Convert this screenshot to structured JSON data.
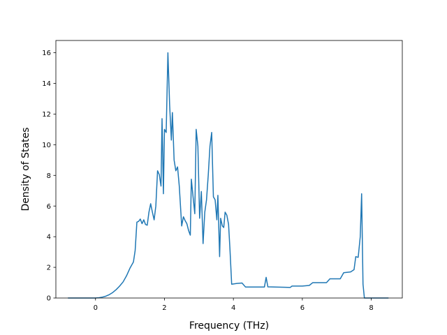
{
  "chart_data": {
    "type": "line",
    "xlabel": "Frequency (THz)",
    "ylabel": "Density of States",
    "xlim": [
      -1.15,
      8.9
    ],
    "ylim": [
      0,
      16.8
    ],
    "xticks": [
      0,
      2,
      4,
      6,
      8
    ],
    "yticks": [
      0,
      2,
      4,
      6,
      8,
      10,
      12,
      14,
      16
    ],
    "grid": false,
    "legend": "none",
    "series": [
      {
        "color": "#1f77b4",
        "points": [
          [
            -0.8,
            0.0
          ],
          [
            -0.4,
            0.0
          ],
          [
            0.0,
            0.0
          ],
          [
            0.1,
            0.02
          ],
          [
            0.2,
            0.06
          ],
          [
            0.3,
            0.12
          ],
          [
            0.4,
            0.22
          ],
          [
            0.5,
            0.36
          ],
          [
            0.6,
            0.55
          ],
          [
            0.7,
            0.78
          ],
          [
            0.8,
            1.05
          ],
          [
            0.9,
            1.45
          ],
          [
            1.0,
            1.95
          ],
          [
            1.05,
            2.15
          ],
          [
            1.1,
            2.35
          ],
          [
            1.15,
            3.1
          ],
          [
            1.2,
            4.95
          ],
          [
            1.25,
            5.0
          ],
          [
            1.3,
            5.15
          ],
          [
            1.35,
            4.85
          ],
          [
            1.4,
            5.1
          ],
          [
            1.45,
            4.8
          ],
          [
            1.5,
            4.75
          ],
          [
            1.55,
            5.6
          ],
          [
            1.6,
            6.15
          ],
          [
            1.65,
            5.6
          ],
          [
            1.7,
            5.1
          ],
          [
            1.75,
            6.0
          ],
          [
            1.8,
            8.3
          ],
          [
            1.85,
            8.05
          ],
          [
            1.9,
            7.3
          ],
          [
            1.93,
            11.7
          ],
          [
            1.97,
            6.8
          ],
          [
            2.0,
            11.0
          ],
          [
            2.05,
            10.8
          ],
          [
            2.1,
            16.0
          ],
          [
            2.15,
            12.6
          ],
          [
            2.2,
            10.3
          ],
          [
            2.23,
            12.1
          ],
          [
            2.28,
            9.0
          ],
          [
            2.33,
            8.3
          ],
          [
            2.38,
            8.55
          ],
          [
            2.43,
            7.3
          ],
          [
            2.5,
            4.7
          ],
          [
            2.55,
            5.3
          ],
          [
            2.6,
            5.05
          ],
          [
            2.65,
            4.85
          ],
          [
            2.7,
            4.4
          ],
          [
            2.75,
            4.1
          ],
          [
            2.78,
            7.75
          ],
          [
            2.83,
            6.6
          ],
          [
            2.88,
            5.5
          ],
          [
            2.92,
            11.0
          ],
          [
            2.97,
            9.9
          ],
          [
            3.02,
            5.2
          ],
          [
            3.07,
            6.95
          ],
          [
            3.12,
            3.55
          ],
          [
            3.17,
            5.6
          ],
          [
            3.22,
            6.4
          ],
          [
            3.27,
            8.0
          ],
          [
            3.32,
            9.9
          ],
          [
            3.37,
            10.8
          ],
          [
            3.42,
            6.6
          ],
          [
            3.47,
            6.4
          ],
          [
            3.52,
            5.1
          ],
          [
            3.55,
            6.7
          ],
          [
            3.6,
            2.7
          ],
          [
            3.63,
            5.2
          ],
          [
            3.68,
            4.7
          ],
          [
            3.72,
            4.6
          ],
          [
            3.76,
            5.6
          ],
          [
            3.81,
            5.4
          ],
          [
            3.86,
            4.8
          ],
          [
            3.9,
            3.2
          ],
          [
            3.95,
            0.9
          ],
          [
            4.1,
            0.95
          ],
          [
            4.25,
            0.98
          ],
          [
            4.35,
            0.72
          ],
          [
            4.9,
            0.72
          ],
          [
            4.95,
            1.35
          ],
          [
            5.0,
            0.73
          ],
          [
            5.5,
            0.7
          ],
          [
            5.65,
            0.69
          ],
          [
            5.7,
            0.78
          ],
          [
            6.0,
            0.78
          ],
          [
            6.2,
            0.82
          ],
          [
            6.3,
            1.0
          ],
          [
            6.6,
            1.0
          ],
          [
            6.7,
            1.0
          ],
          [
            6.8,
            1.25
          ],
          [
            7.1,
            1.25
          ],
          [
            7.2,
            1.65
          ],
          [
            7.4,
            1.7
          ],
          [
            7.5,
            1.85
          ],
          [
            7.55,
            2.7
          ],
          [
            7.62,
            2.65
          ],
          [
            7.68,
            4.0
          ],
          [
            7.72,
            6.8
          ],
          [
            7.76,
            0.9
          ],
          [
            7.8,
            0.0
          ],
          [
            8.0,
            0.0
          ],
          [
            8.5,
            0.0
          ]
        ]
      }
    ]
  }
}
